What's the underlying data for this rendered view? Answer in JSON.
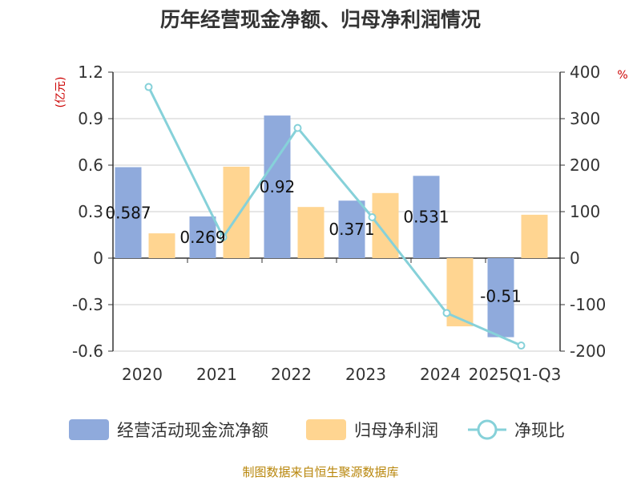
{
  "chart_data": {
    "type": "bar",
    "title": "历年经营现金净额、归母净利润情况",
    "categories": [
      "2020",
      "2021",
      "2022",
      "2023",
      "2024",
      "2025Q1-Q3"
    ],
    "left_axis": {
      "unit_label": "(亿元)",
      "ylim": [
        -0.6,
        1.2
      ],
      "ticks": [
        "1.2",
        "0.9",
        "0.6",
        "0.3",
        "0",
        "-0.3",
        "-0.6"
      ],
      "tick_values": [
        1.2,
        0.9,
        0.6,
        0.3,
        0,
        -0.3,
        -0.6
      ]
    },
    "right_axis": {
      "unit_label": "%",
      "ylim": [
        -200,
        400
      ],
      "ticks": [
        "400",
        "300",
        "200",
        "100",
        "0",
        "-100",
        "-200"
      ],
      "tick_values": [
        400,
        300,
        200,
        100,
        0,
        -100,
        -200
      ]
    },
    "series": [
      {
        "name": "经营活动现金流净额",
        "type": "bar",
        "axis": "left",
        "color": "#8faadc",
        "values": [
          0.587,
          0.269,
          0.92,
          0.371,
          0.531,
          -0.51
        ],
        "labels": [
          "0.587",
          "0.269",
          "0.92",
          "0.371",
          "0.531",
          "-0.51"
        ]
      },
      {
        "name": "归母净利润",
        "type": "bar",
        "axis": "left",
        "color": "#ffd591",
        "values": [
          0.16,
          0.59,
          0.33,
          0.42,
          -0.44,
          0.28
        ]
      },
      {
        "name": "净现比",
        "type": "line",
        "axis": "right",
        "color": "#86d1d9",
        "values": [
          368,
          45,
          280,
          88,
          -118,
          -188
        ]
      }
    ],
    "legend_position": "bottom",
    "source": "制图数据来自恒生聚源数据库"
  }
}
